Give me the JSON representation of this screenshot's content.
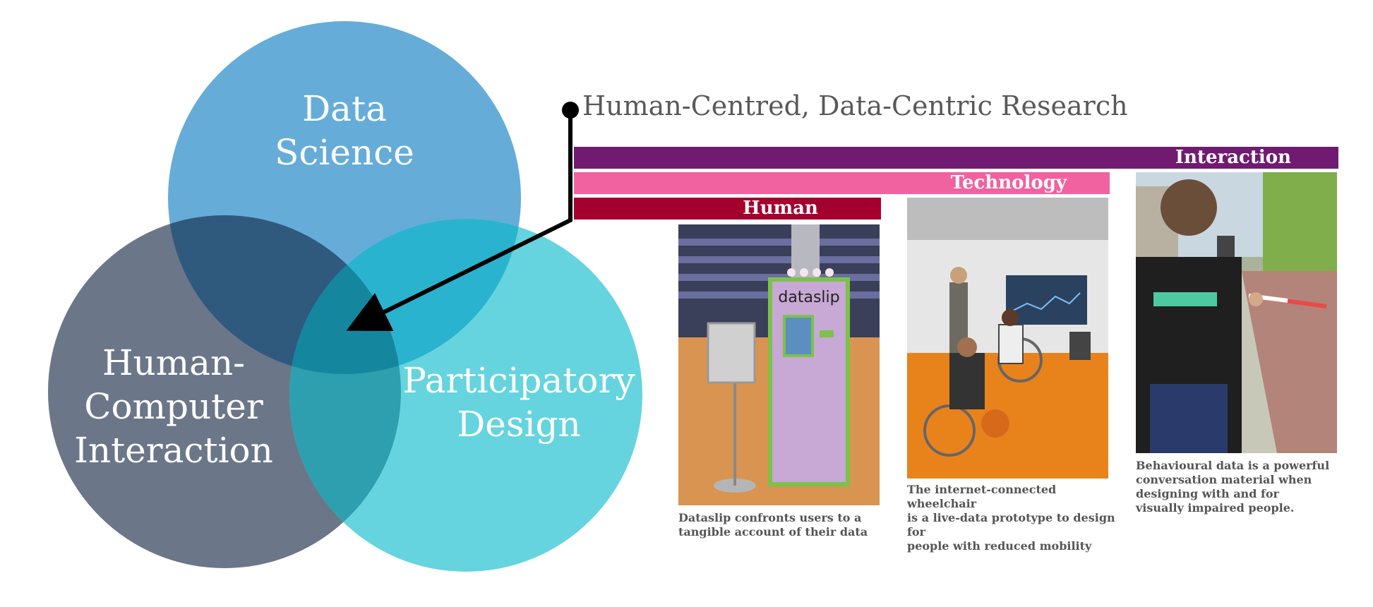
{
  "venn": {
    "data_science": [
      "Data",
      "Science"
    ],
    "hci": [
      "Human-",
      "Computer",
      "Interaction"
    ],
    "participatory_design": [
      "Participatory",
      "Design"
    ]
  },
  "headline": "Human-Centred, Data-Centric Research",
  "bars": {
    "interaction": "Interaction",
    "technology": "Technology",
    "human": "Human"
  },
  "photos": {
    "dataslip": {
      "sign_text": "dataslip",
      "caption": [
        "Dataslip confronts users to a",
        "tangible account of their data"
      ]
    },
    "wheelchair": {
      "caption": [
        "The internet-connected wheelchair",
        "is a live-data prototype to design for",
        "people with reduced mobility"
      ]
    },
    "behavioural": {
      "caption": [
        "Behavioural data is a powerful",
        "conversation material when",
        "designing with and for",
        "visually impaired people."
      ]
    }
  },
  "colors": {
    "data_science": "#66acd8",
    "hci": "#6b7689",
    "participatory_design": "#66d4de",
    "interaction_bar": "#701a72",
    "technology_bar": "#f062a0",
    "human_bar": "#a3002e"
  }
}
